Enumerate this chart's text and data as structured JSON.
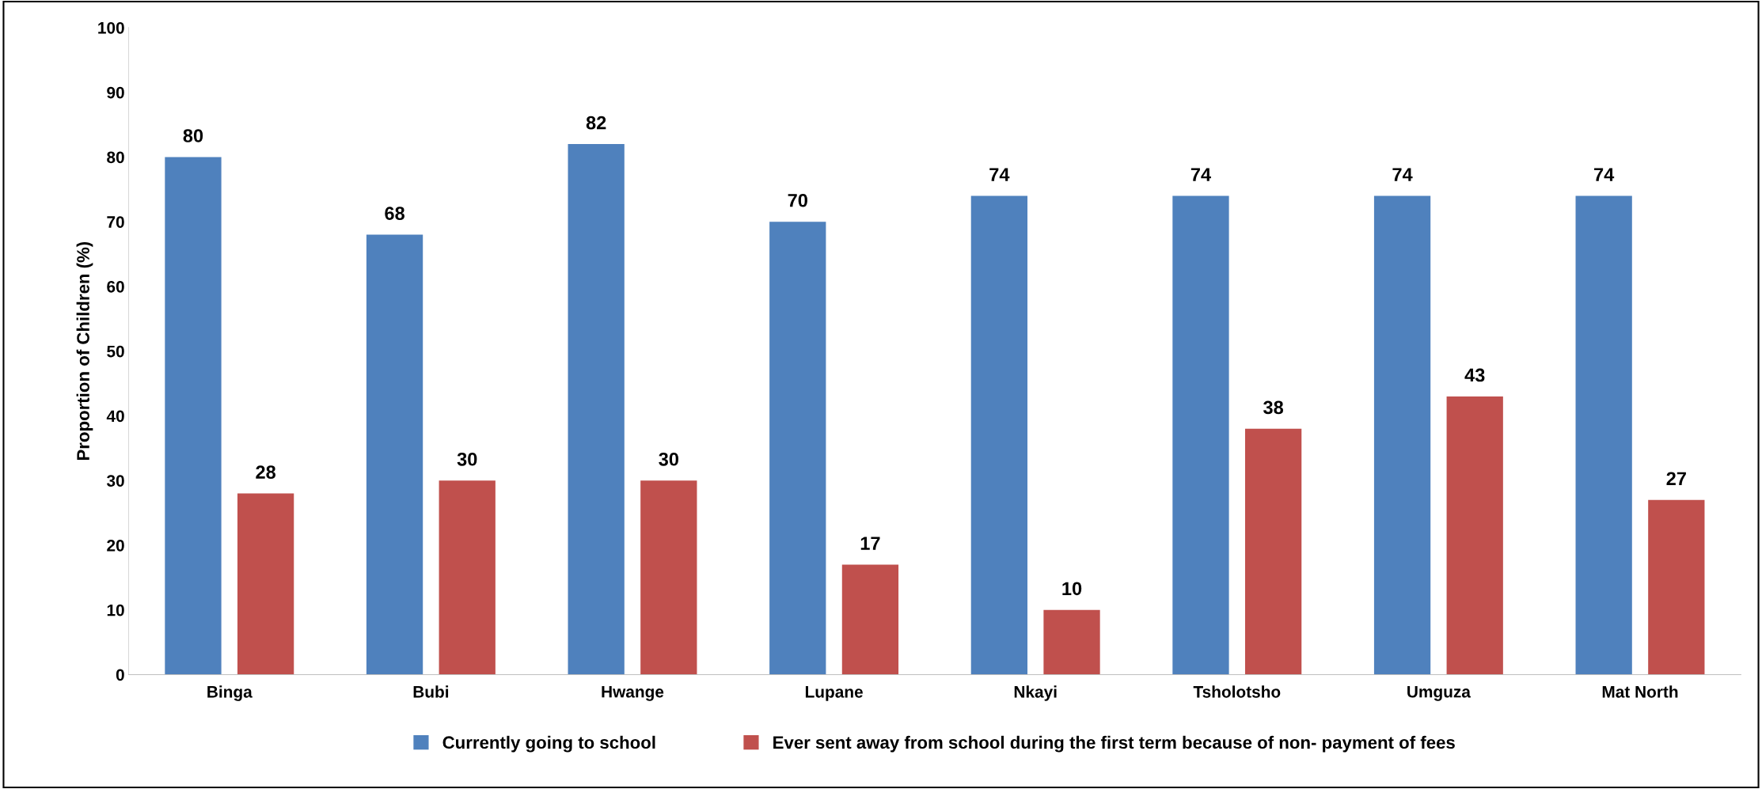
{
  "chart_data": {
    "type": "bar",
    "ylabel": "Proportion of Children (%)",
    "categories": [
      "Binga",
      "Bubi",
      "Hwange",
      "Lupane",
      "Nkayi",
      "Tsholotsho",
      "Umguza",
      "Mat North"
    ],
    "series": [
      {
        "name": "Currently going to school",
        "color": "#4f81bd",
        "values": [
          80,
          68,
          82,
          70,
          74,
          74,
          74,
          74
        ]
      },
      {
        "name": "Ever sent away from school during the first term because of non- payment of fees",
        "color": "#c0504d",
        "values": [
          28,
          30,
          30,
          17,
          10,
          38,
          43,
          27
        ]
      }
    ],
    "ylim": [
      0,
      100
    ],
    "yticks": [
      0,
      10,
      20,
      30,
      40,
      50,
      60,
      70,
      80,
      90,
      100
    ],
    "data_labels": true,
    "grid": false,
    "legend": "bottom"
  }
}
